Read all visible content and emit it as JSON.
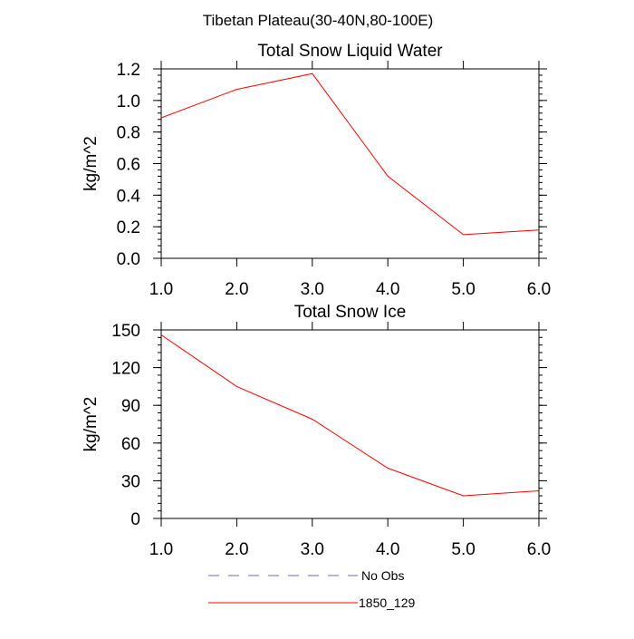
{
  "suptitle": "Tibetan Plateau(30-40N,80-100E)",
  "legend": {
    "entries": [
      {
        "label": "No Obs",
        "color": "#6b6baa",
        "style": "dashed"
      },
      {
        "label": "1850_129",
        "color": "#ff0000",
        "style": "solid"
      }
    ]
  },
  "chart_data": [
    {
      "type": "line",
      "title": "Total Snow Liquid Water",
      "xlabel": "",
      "ylabel": "kg/m^2",
      "xlim": [
        1.0,
        6.0
      ],
      "ylim": [
        0.0,
        1.2
      ],
      "xticks": [
        1.0,
        2.0,
        3.0,
        4.0,
        5.0,
        6.0
      ],
      "xtick_labels": [
        "1.0",
        "2.0",
        "3.0",
        "4.0",
        "5.0",
        "6.0"
      ],
      "yticks": [
        0.0,
        0.2,
        0.4,
        0.6,
        0.8,
        1.0,
        1.2
      ],
      "ytick_labels": [
        "0.0",
        "0.2",
        "0.4",
        "0.6",
        "0.8",
        "1.0",
        "1.2"
      ],
      "grid": false,
      "series": [
        {
          "name": "1850_129",
          "color": "#ff0000",
          "x": [
            1.0,
            2.0,
            3.0,
            4.0,
            5.0,
            6.0
          ],
          "y": [
            0.89,
            1.07,
            1.17,
            0.52,
            0.15,
            0.18
          ]
        }
      ]
    },
    {
      "type": "line",
      "title": "Total Snow Ice",
      "xlabel": "",
      "ylabel": "kg/m^2",
      "xlim": [
        1.0,
        6.0
      ],
      "ylim": [
        0,
        150
      ],
      "xticks": [
        1.0,
        2.0,
        3.0,
        4.0,
        5.0,
        6.0
      ],
      "xtick_labels": [
        "1.0",
        "2.0",
        "3.0",
        "4.0",
        "5.0",
        "6.0"
      ],
      "yticks": [
        0,
        30,
        60,
        90,
        120,
        150
      ],
      "ytick_labels": [
        "0",
        "30",
        "60",
        "90",
        "120",
        "150"
      ],
      "grid": false,
      "series": [
        {
          "name": "1850_129",
          "color": "#ff0000",
          "x": [
            1.0,
            2.0,
            3.0,
            4.0,
            5.0,
            6.0
          ],
          "y": [
            146,
            105,
            79,
            40,
            18,
            22
          ]
        }
      ]
    }
  ]
}
